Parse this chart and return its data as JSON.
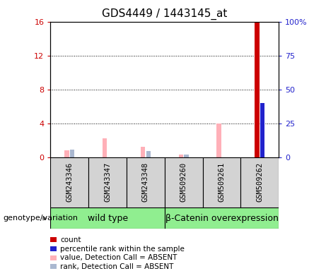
{
  "title": "GDS4449 / 1443145_at",
  "samples": [
    "GSM243346",
    "GSM243347",
    "GSM243348",
    "GSM509260",
    "GSM509261",
    "GSM509262"
  ],
  "ylim_left": [
    0,
    16
  ],
  "ylim_right": [
    0,
    100
  ],
  "yticks_left": [
    0,
    4,
    8,
    12,
    16
  ],
  "yticks_right": [
    0,
    25,
    50,
    75,
    100
  ],
  "ytick_labels_left": [
    "0",
    "4",
    "8",
    "12",
    "16"
  ],
  "ytick_labels_right": [
    "0",
    "25",
    "50",
    "75",
    "100%"
  ],
  "value_bars": [
    0.8,
    2.2,
    1.2,
    0.3,
    4.0,
    0.0
  ],
  "rank_bars_pct": [
    5.5,
    0.0,
    4.5,
    2.0,
    0.0,
    0.0
  ],
  "count_values": [
    0,
    0,
    0,
    0,
    0,
    16.0
  ],
  "percentile_values_pct": [
    0,
    0,
    0,
    0,
    0,
    40.0
  ],
  "value_color": "#ffb0b8",
  "rank_color": "#aab8d0",
  "count_color": "#cc0000",
  "percentile_color": "#2222cc",
  "bar_width": 0.12,
  "wt_group": [
    0,
    1,
    2
  ],
  "bc_group": [
    3,
    4,
    5
  ],
  "legend_items": [
    {
      "color": "#cc0000",
      "label": "count"
    },
    {
      "color": "#2222cc",
      "label": "percentile rank within the sample"
    },
    {
      "color": "#ffb0b8",
      "label": "value, Detection Call = ABSENT"
    },
    {
      "color": "#aab8d0",
      "label": "rank, Detection Call = ABSENT"
    }
  ],
  "grid_color": "black",
  "plot_bg": "white",
  "left_yaxis_color": "#cc0000",
  "right_yaxis_color": "#2222cc",
  "sample_box_color": "#d3d3d3",
  "genotype_label": "genotype/variation",
  "group_box_color": "#90ee90",
  "group_labels": [
    "wild type",
    "β-Catenin overexpression"
  ]
}
